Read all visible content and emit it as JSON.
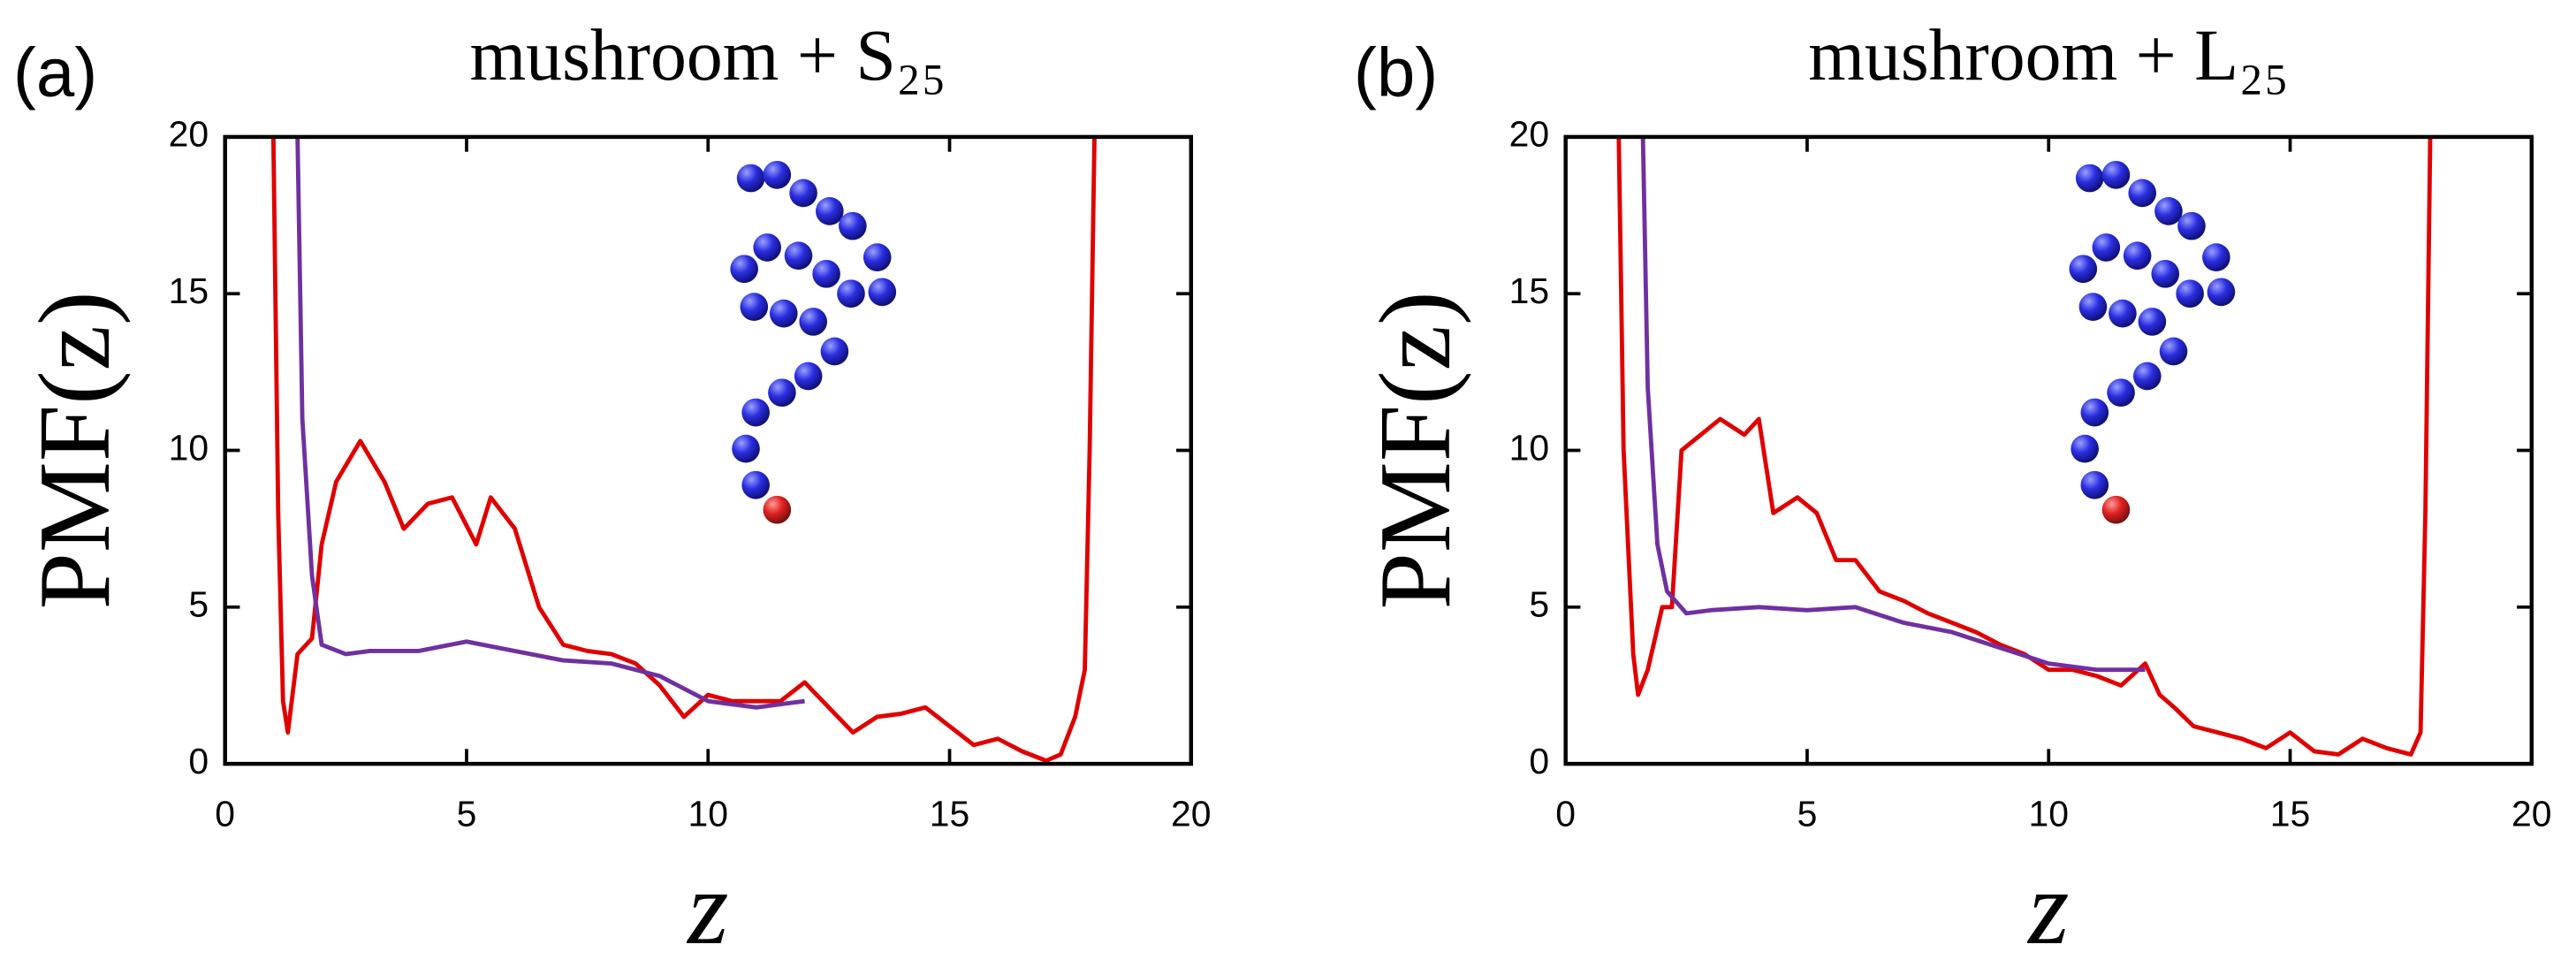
{
  "chart_data": [
    {
      "type": "line",
      "panel_label": "(a)",
      "title": "mushroom + S₂₅",
      "xlabel": "z",
      "ylabel": "PMF(z)",
      "xlim": [
        0,
        20
      ],
      "ylim": [
        0,
        20
      ],
      "xticks": [
        0,
        5,
        10,
        15,
        20
      ],
      "yticks": [
        0,
        5,
        10,
        15,
        20
      ],
      "series": [
        {
          "color": "#e00000",
          "x": [
            1.0,
            1.1,
            1.2,
            1.3,
            1.5,
            1.8,
            2.0,
            2.3,
            2.8,
            3.3,
            3.7,
            4.2,
            4.7,
            5.2,
            5.5,
            6.0,
            6.5,
            7.0,
            7.5,
            8.0,
            8.5,
            9.0,
            9.5,
            10.0,
            10.5,
            11.0,
            11.5,
            12.0,
            12.5,
            13.0,
            13.5,
            14.0,
            14.5,
            15.0,
            15.5,
            16.0,
            16.5,
            17.0,
            17.3,
            17.6,
            17.8,
            17.9,
            18.0
          ],
          "values": [
            20,
            8,
            2,
            1,
            3.5,
            4,
            7,
            9,
            10.3,
            9,
            7.5,
            8.3,
            8.5,
            7,
            8.5,
            7.5,
            5,
            3.8,
            3.6,
            3.5,
            3.2,
            2.5,
            1.5,
            2.2,
            2,
            2,
            2,
            2.6,
            1.8,
            1,
            1.5,
            1.6,
            1.8,
            1.2,
            0.6,
            0.8,
            0.4,
            0.1,
            0.3,
            1.5,
            3,
            10,
            20
          ]
        },
        {
          "color": "#7030a0",
          "x": [
            1.5,
            1.6,
            1.8,
            2.0,
            2.5,
            3.0,
            4.0,
            5.0,
            6.0,
            7.0,
            8.0,
            9.0,
            10.0,
            11.0,
            12.0
          ],
          "values": [
            20,
            11,
            6,
            3.8,
            3.5,
            3.6,
            3.6,
            3.9,
            3.6,
            3.3,
            3.2,
            2.8,
            2,
            1.8,
            2
          ]
        }
      ]
    },
    {
      "type": "line",
      "panel_label": "(b)",
      "title": "mushroom + L₂₅",
      "xlabel": "z",
      "ylabel": "PMF(z)",
      "xlim": [
        0,
        20
      ],
      "ylim": [
        0,
        20
      ],
      "xticks": [
        0,
        5,
        10,
        15,
        20
      ],
      "yticks": [
        0,
        5,
        10,
        15,
        20
      ],
      "series": [
        {
          "color": "#e00000",
          "x": [
            1.1,
            1.2,
            1.4,
            1.5,
            1.7,
            2.0,
            2.2,
            2.4,
            2.8,
            3.2,
            3.7,
            4.0,
            4.3,
            4.8,
            5.2,
            5.6,
            6.0,
            6.5,
            7.0,
            7.5,
            8.0,
            8.5,
            9.0,
            9.5,
            10.0,
            10.5,
            11.0,
            11.5,
            12.0,
            12.3,
            12.6,
            13.0,
            13.5,
            14.0,
            14.5,
            15.0,
            15.5,
            16.0,
            16.5,
            17.0,
            17.5,
            17.7,
            17.8,
            17.9
          ],
          "values": [
            20,
            10,
            3.5,
            2.2,
            3,
            5,
            5,
            10,
            10.5,
            11,
            10.5,
            11,
            8,
            8.5,
            8,
            6.5,
            6.5,
            5.5,
            5.2,
            4.8,
            4.5,
            4.2,
            3.8,
            3.5,
            3,
            3,
            2.8,
            2.5,
            3.2,
            2.2,
            1.8,
            1.2,
            1,
            0.8,
            0.5,
            1,
            0.4,
            0.3,
            0.8,
            0.5,
            0.3,
            1,
            8,
            20
          ]
        },
        {
          "color": "#7030a0",
          "x": [
            1.6,
            1.7,
            1.9,
            2.1,
            2.5,
            3.0,
            4.0,
            5.0,
            6.0,
            7.0,
            8.0,
            9.0,
            10.0,
            11.0,
            12.0
          ],
          "values": [
            20,
            12,
            7,
            5.5,
            4.8,
            4.9,
            5,
            4.9,
            5,
            4.5,
            4.2,
            3.7,
            3.2,
            3,
            3
          ]
        }
      ]
    }
  ]
}
